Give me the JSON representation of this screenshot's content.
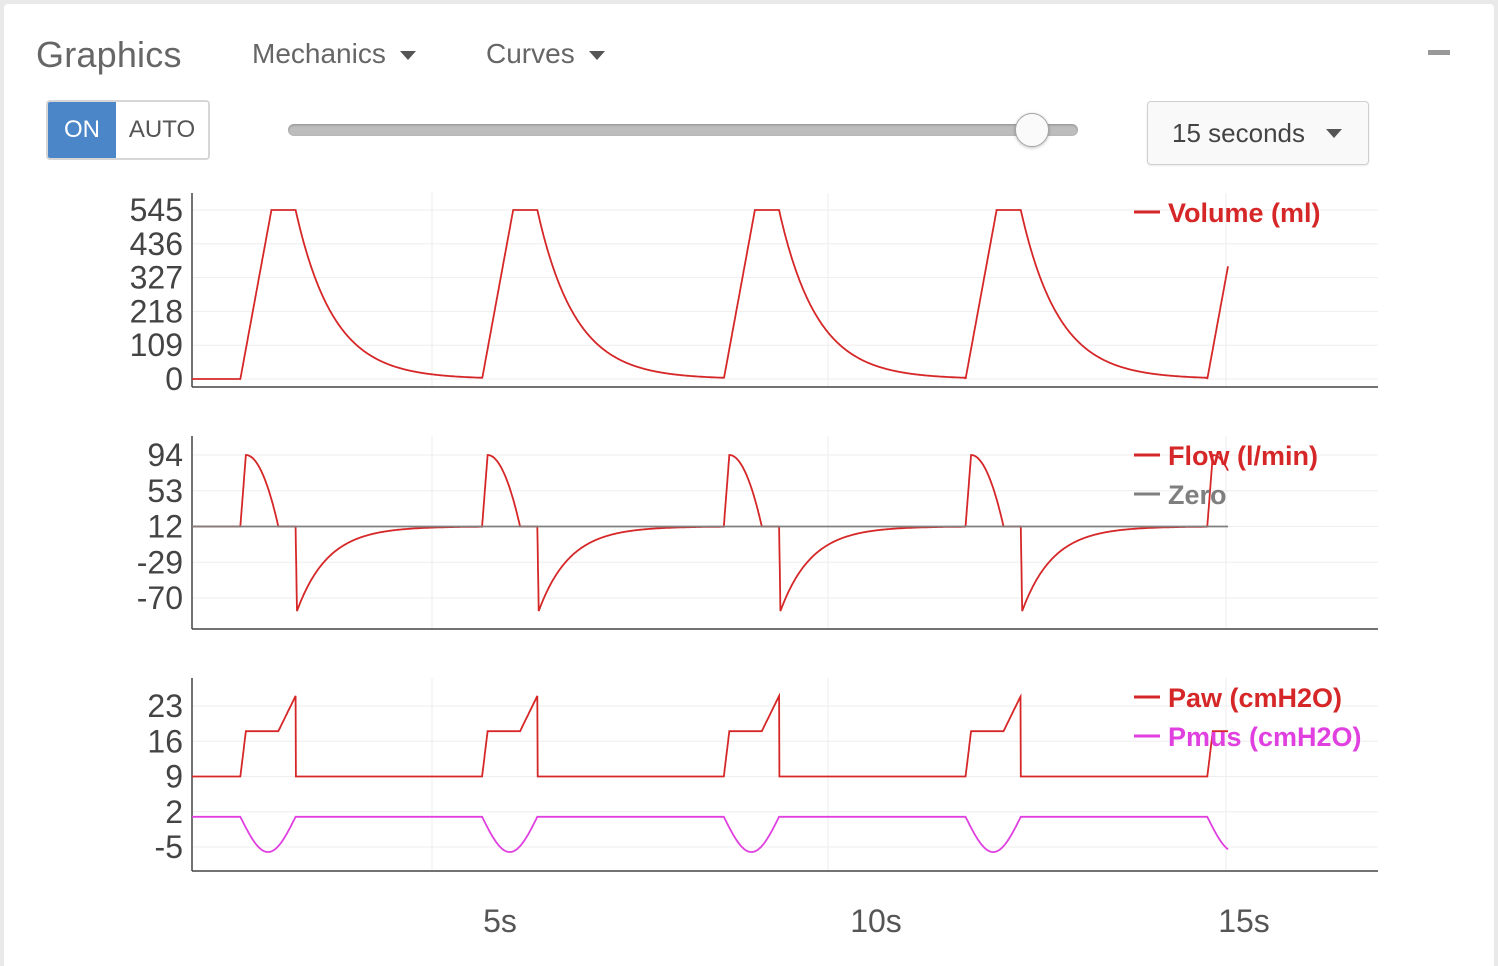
{
  "header": {
    "title": "Graphics",
    "mechanics_label": "Mechanics",
    "curves_label": "Curves",
    "minimize_icon": "minus-icon"
  },
  "controls": {
    "on_label": "ON",
    "auto_label": "AUTO",
    "slider_value_fraction": 0.94,
    "time_window_label": "15 seconds"
  },
  "colors": {
    "accent": "#4a86c8",
    "volume": "#d62728",
    "flow": "#d62728",
    "zero": "#7f7f7f",
    "paw": "#d62728",
    "pmus": "#e040e0",
    "axis": "#444444",
    "grid": "#eeeeee"
  },
  "chart_data": [
    {
      "type": "line",
      "x_ticks": [
        "5s",
        "10s",
        "15s"
      ],
      "y_ticks": [
        "545",
        "436",
        "327",
        "218",
        "109",
        "0"
      ],
      "ylim": [
        0,
        545
      ],
      "xlim": [
        0,
        15
      ],
      "series": [
        {
          "name": "Volume (ml)",
          "color": "#d62728",
          "cycle_period_s": 3.5,
          "first_breath_start_s": 0.7,
          "inspiratory_time_s": 0.8,
          "peak_value": 545
        }
      ]
    },
    {
      "type": "line",
      "x_ticks": [
        "5s",
        "10s",
        "15s"
      ],
      "y_ticks": [
        "94",
        "53",
        "12",
        "-29",
        "-70"
      ],
      "ylim": [
        -70,
        94
      ],
      "xlim": [
        0,
        15
      ],
      "series": [
        {
          "name": "Flow (l/min)",
          "color": "#d62728",
          "peak_inspiratory": 94,
          "peak_expiratory": -85,
          "baseline": 12
        },
        {
          "name": "Zero",
          "color": "#7f7f7f",
          "value": 12
        }
      ]
    },
    {
      "type": "line",
      "x_ticks": [
        "5s",
        "10s",
        "15s"
      ],
      "y_ticks": [
        "23",
        "16",
        "9",
        "2",
        "-5"
      ],
      "ylim": [
        -5,
        23
      ],
      "xlim": [
        0,
        15
      ],
      "series": [
        {
          "name": "Paw (cmH2O)",
          "color": "#d62728",
          "baseline": 9,
          "plateau": 18,
          "peak": 25
        },
        {
          "name": "Pmus (cmH2O)",
          "color": "#e040e0",
          "baseline": 1,
          "trough": -6
        }
      ]
    }
  ]
}
